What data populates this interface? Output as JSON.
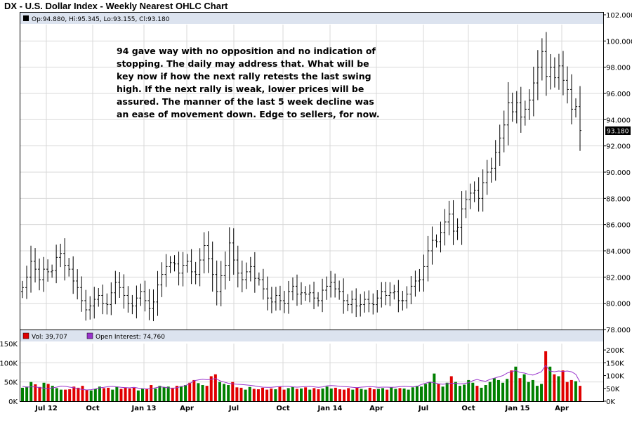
{
  "title": "DX - U.S. Dollar Index - Weekly Nearest OHLC Chart",
  "price_legend": "Op:94.880, Hi:95.345, Lo:93.155, Cl:93.180",
  "volume_legend_vol": "Vol: 39,707",
  "volume_legend_oi": "Open Interest: 74,760",
  "last_price_label": "93.180",
  "annotation_lines": [
    "94 gave way with no opposition and no indication of",
    "stopping.  The daily may address that.  What will be",
    "key now if how the next rally retests the last swing",
    "high.  If the next rally is weak, lower prices will be",
    "assured.  The manner of the last 5 week decline was",
    "an ease of movement down.  Edge to sellers, for now."
  ],
  "colors": {
    "bars": "#000000",
    "volume_up": "#008000",
    "volume_down": "#e00000",
    "open_interest": "#9933cc",
    "grid": "#d9d9d9",
    "legend_bg": "#dce3ef"
  },
  "chart_data": [
    {
      "type": "ohlc",
      "title": "DX - U.S. Dollar Index - Weekly Nearest OHLC Chart",
      "ylim": [
        78,
        102
      ],
      "y_ticks": [
        "102.000",
        "100.000",
        "98.000",
        "96.000",
        "94.000",
        "92.000",
        "90.000",
        "88.000",
        "86.000",
        "84.000",
        "82.000",
        "80.000",
        "78.000"
      ],
      "x_ticks": [
        "Jul 12",
        "Oct",
        "Jan 13",
        "Apr",
        "Jul",
        "Oct",
        "Jan 14",
        "Apr",
        "Jul",
        "Oct",
        "Jan 15",
        "Apr"
      ],
      "grid": true,
      "close": [
        81.2,
        82.0,
        83.2,
        82.6,
        81.8,
        82.6,
        82.4,
        82.5,
        83.5,
        83.8,
        82.9,
        82.6,
        81.7,
        81.2,
        80.2,
        79.5,
        79.8,
        80.3,
        80.6,
        80.0,
        79.9,
        80.8,
        81.6,
        81.2,
        80.6,
        80.0,
        79.8,
        80.4,
        80.9,
        80.2,
        79.6,
        80.1,
        81.4,
        82.2,
        82.8,
        83.1,
        83.0,
        82.3,
        82.9,
        83.2,
        82.4,
        82.2,
        83.3,
        84.4,
        83.4,
        82.2,
        80.9,
        82.1,
        82.9,
        84.6,
        83.3,
        82.3,
        81.8,
        82.4,
        82.8,
        81.9,
        81.8,
        81.1,
        80.4,
        80.1,
        80.6,
        80.2,
        80.0,
        80.9,
        81.3,
        80.7,
        80.8,
        80.7,
        80.8,
        80.4,
        80.2,
        81.0,
        81.3,
        81.6,
        81.1,
        80.9,
        80.2,
        79.9,
        80.3,
        79.8,
        79.9,
        80.3,
        80.0,
        79.9,
        80.4,
        80.9,
        80.6,
        80.8,
        80.9,
        80.2,
        80.2,
        80.7,
        81.3,
        81.7,
        81.8,
        82.8,
        84.0,
        84.8,
        84.7,
        85.4,
        86.2,
        86.8,
        85.5,
        85.8,
        87.2,
        87.9,
        88.4,
        88.6,
        88.0,
        89.2,
        90.0,
        90.3,
        91.5,
        92.6,
        93.6,
        95.3,
        94.6,
        95.3,
        94.2,
        94.8,
        95.5,
        96.8,
        98.0,
        99.2,
        97.3,
        98.0,
        97.2,
        98.1,
        97.0,
        96.3,
        94.8,
        95.0,
        93.18
      ]
    },
    {
      "type": "bar",
      "title": "",
      "ylim": [
        0,
        150000
      ],
      "y_ticks": [
        "150K",
        "100K",
        "50K",
        "0K"
      ],
      "y2_ticks": [
        "200K",
        "150K",
        "100K",
        "50K",
        "0K"
      ],
      "y2lim": [
        0,
        225000
      ],
      "series": [
        {
          "name": "Vol",
          "values": [
            35000,
            38000,
            50000,
            44000,
            37000,
            48000,
            45000,
            40000,
            34000,
            30000,
            30000,
            31000,
            38000,
            35000,
            40000,
            30000,
            28000,
            32000,
            38000,
            34000,
            35000,
            30000,
            38000,
            32000,
            36000,
            33000,
            35000,
            28000,
            32000,
            31000,
            42000,
            33000,
            40000,
            36000,
            38000,
            35000,
            40000,
            39000,
            42000,
            48000,
            55000,
            47000,
            42000,
            40000,
            65000,
            70000,
            50000,
            45000,
            42000,
            50000,
            36000,
            35000,
            30000,
            37000,
            32000,
            31000,
            35000,
            30000,
            33000,
            31000,
            38000,
            30000,
            34000,
            37000,
            32000,
            33000,
            36000,
            30000,
            34000,
            31000,
            33000,
            38000,
            33000,
            35000,
            31000,
            30000,
            34000,
            30000,
            36000,
            32000,
            30000,
            35000,
            31000,
            32000,
            34000,
            30000,
            36000,
            32000,
            34000,
            33000,
            30000,
            36000,
            40000,
            38000,
            45000,
            50000,
            72000,
            45000,
            38000,
            48000,
            65000,
            50000,
            40000,
            43000,
            55000,
            48000,
            40000,
            35000,
            42000,
            50000,
            60000,
            55000,
            48000,
            58000,
            80000,
            90000,
            60000,
            70000,
            50000,
            55000,
            40000,
            45000,
            130000,
            90000,
            70000,
            65000,
            80000,
            50000,
            55000,
            52000,
            40000
          ]
        },
        {
          "name": "Open Interest",
          "values": [
            58000,
            55000,
            56000,
            56000,
            53000,
            51000,
            49000,
            52000,
            55000,
            59000,
            58000,
            55000,
            53000,
            48000,
            46000,
            44000,
            45000,
            48000,
            52000,
            54000,
            57000,
            58000,
            56000,
            54000,
            53000,
            52000,
            54000,
            51000,
            49000,
            48000,
            49000,
            52000,
            56000,
            55000,
            52000,
            50000,
            53000,
            57000,
            61000,
            69000,
            80000,
            83000,
            86000,
            84000,
            85000,
            89000,
            80000,
            75000,
            70000,
            68000,
            66000,
            65000,
            64000,
            62000,
            60000,
            57000,
            55000,
            54000,
            54000,
            56000,
            57000,
            58000,
            58000,
            56000,
            55000,
            56000,
            57000,
            58000,
            56000,
            54000,
            56000,
            60000,
            61000,
            60000,
            58000,
            57000,
            56000,
            54000,
            53000,
            55000,
            56000,
            57000,
            56000,
            54000,
            55000,
            55000,
            54000,
            55000,
            57000,
            58000,
            57000,
            56000,
            58000,
            65000,
            70000,
            75000,
            72000,
            68000,
            66000,
            68000,
            70000,
            70000,
            68000,
            69000,
            72000,
            80000,
            85000,
            80000,
            78000,
            85000,
            90000,
            95000,
            100000,
            110000,
            115000,
            120000,
            112000,
            110000,
            105000,
            102000,
            108000,
            115000,
            140000,
            118000,
            115000,
            118000,
            116000,
            118000,
            115000,
            105000,
            75000
          ]
        }
      ]
    }
  ]
}
